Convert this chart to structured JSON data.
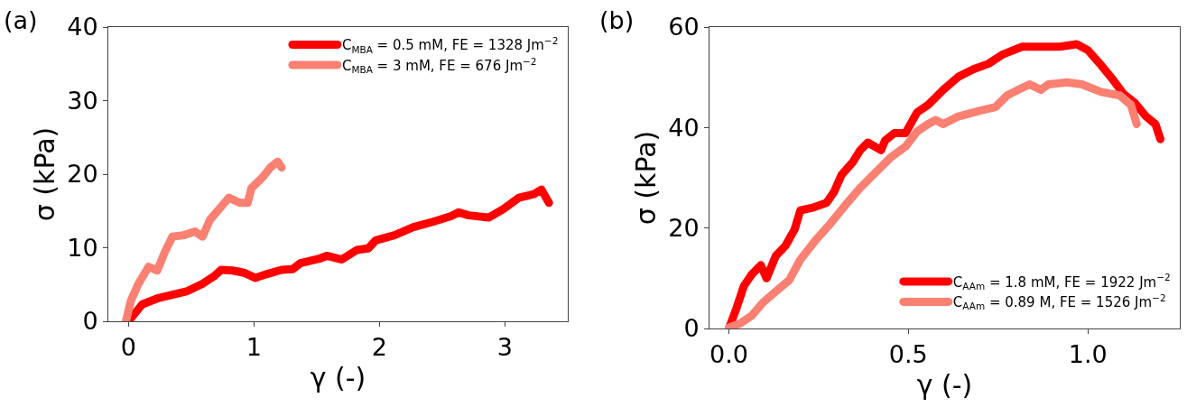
{
  "chart_data": [
    {
      "type": "line",
      "annotations": [
        "(a)"
      ],
      "xlabel": "γ (-)",
      "ylabel": "σ (kPa)",
      "xlim": [
        -0.16,
        3.5
      ],
      "ylim": [
        0,
        40
      ],
      "xticks": [
        0,
        1,
        2,
        3
      ],
      "yticks": [
        0,
        10,
        20,
        30,
        40
      ],
      "grid": false,
      "legend": "top right",
      "line_style": "solid",
      "series": [
        {
          "name": "C$_{MBA}$ = 0.5 mM, FE = 1328 Jm$^{−2}$",
          "color": "#ff0000",
          "x": [
            0,
            0.11,
            0.23,
            0.35,
            0.47,
            0.59,
            0.68,
            0.74,
            0.83,
            0.92,
            1.01,
            1.1,
            1.22,
            1.31,
            1.37,
            1.52,
            1.58,
            1.7,
            1.82,
            1.91,
            1.97,
            2.12,
            2.27,
            2.42,
            2.57,
            2.63,
            2.71,
            2.87,
            2.99,
            3.11,
            3.23,
            3.29,
            3.35
          ],
          "values": [
            0,
            2.3,
            3.1,
            3.6,
            4.1,
            5.1,
            6.1,
            7,
            6.9,
            6.6,
            5.9,
            6.4,
            7,
            7.1,
            7.9,
            8.5,
            8.9,
            8.4,
            9.7,
            9.9,
            11,
            11.7,
            12.8,
            13.5,
            14.3,
            14.8,
            14.4,
            14.1,
            15.3,
            16.8,
            17.3,
            17.9,
            16.1
          ]
        },
        {
          "name": "C$_{MBA}$ = 3 mM, FE = 676 Jm$^{−2}$",
          "color": "#fa8072",
          "x": [
            -0.02,
            0.02,
            0.08,
            0.16,
            0.23,
            0.29,
            0.35,
            0.44,
            0.53,
            0.59,
            0.65,
            0.74,
            0.8,
            0.89,
            0.95,
            0.98,
            1.07,
            1.13,
            1.19,
            1.22
          ],
          "values": [
            0,
            2.8,
            5.1,
            7.4,
            6.9,
            9.4,
            11.5,
            11.7,
            12.2,
            11.5,
            13.8,
            15.6,
            16.8,
            16.1,
            16.1,
            18.1,
            19.6,
            20.9,
            21.7,
            20.9
          ]
        }
      ]
    },
    {
      "type": "line",
      "annotations": [
        "(b)"
      ],
      "xlabel": "γ (-)",
      "ylabel": "σ (kPa)",
      "xlim": [
        -0.054,
        1.256
      ],
      "ylim": [
        0,
        60
      ],
      "xticks": [
        {
          "value": 0,
          "label": "0.0"
        },
        0.5,
        {
          "value": 1,
          "label": "1.0"
        }
      ],
      "yticks": [
        0,
        20,
        40,
        60
      ],
      "grid": false,
      "legend": "bottom right",
      "line_style": "solid",
      "series": [
        {
          "name": "C$_{AAm}$ = 1.8 mM, FE = 1922 Jm$^{−2}$",
          "color": "#ff0000",
          "x": [
            0,
            0.021,
            0.042,
            0.063,
            0.089,
            0.105,
            0.131,
            0.157,
            0.183,
            0.199,
            0.236,
            0.272,
            0.293,
            0.314,
            0.346,
            0.366,
            0.387,
            0.424,
            0.435,
            0.461,
            0.492,
            0.524,
            0.555,
            0.597,
            0.639,
            0.681,
            0.723,
            0.764,
            0.817,
            0.869,
            0.921,
            0.969,
            1.0,
            1.037,
            1.068,
            1.099,
            1.131,
            1.162,
            1.188,
            1.202
          ],
          "values": [
            0,
            4,
            8.5,
            10.7,
            12.6,
            10,
            14.5,
            16.4,
            19.7,
            23.5,
            24.1,
            25,
            27.2,
            30.6,
            33.2,
            35.5,
            37,
            35.5,
            37.4,
            38.9,
            38.9,
            43,
            44.5,
            47.5,
            50.1,
            51.6,
            52.7,
            54.6,
            56.1,
            56.1,
            56.1,
            56.6,
            55.4,
            52.4,
            49.7,
            46.7,
            44.9,
            42.2,
            40.7,
            37.7
          ]
        },
        {
          "name": "C$_{AAm}$ = 0.89 M, FE = 1526 Jm$^{−2}$",
          "color": "#fa8072",
          "x": [
            0,
            0.031,
            0.063,
            0.094,
            0.136,
            0.168,
            0.199,
            0.241,
            0.283,
            0.325,
            0.366,
            0.408,
            0.45,
            0.492,
            0.524,
            0.555,
            0.576,
            0.597,
            0.639,
            0.702,
            0.743,
            0.775,
            0.806,
            0.838,
            0.869,
            0.89,
            0.942,
            0.984,
            1.037,
            1.089,
            1.12,
            1.136
          ],
          "values": [
            0.2,
            1,
            2.5,
            5.1,
            7.7,
            9.6,
            13.7,
            17.5,
            20.9,
            24.6,
            28,
            31,
            34,
            36.2,
            39.2,
            40.7,
            41.5,
            40.7,
            42.2,
            43.4,
            44.1,
            46.4,
            47.5,
            48.6,
            47.5,
            48.6,
            49,
            48.6,
            47.1,
            46.4,
            44.5,
            40.7
          ]
        }
      ]
    }
  ]
}
